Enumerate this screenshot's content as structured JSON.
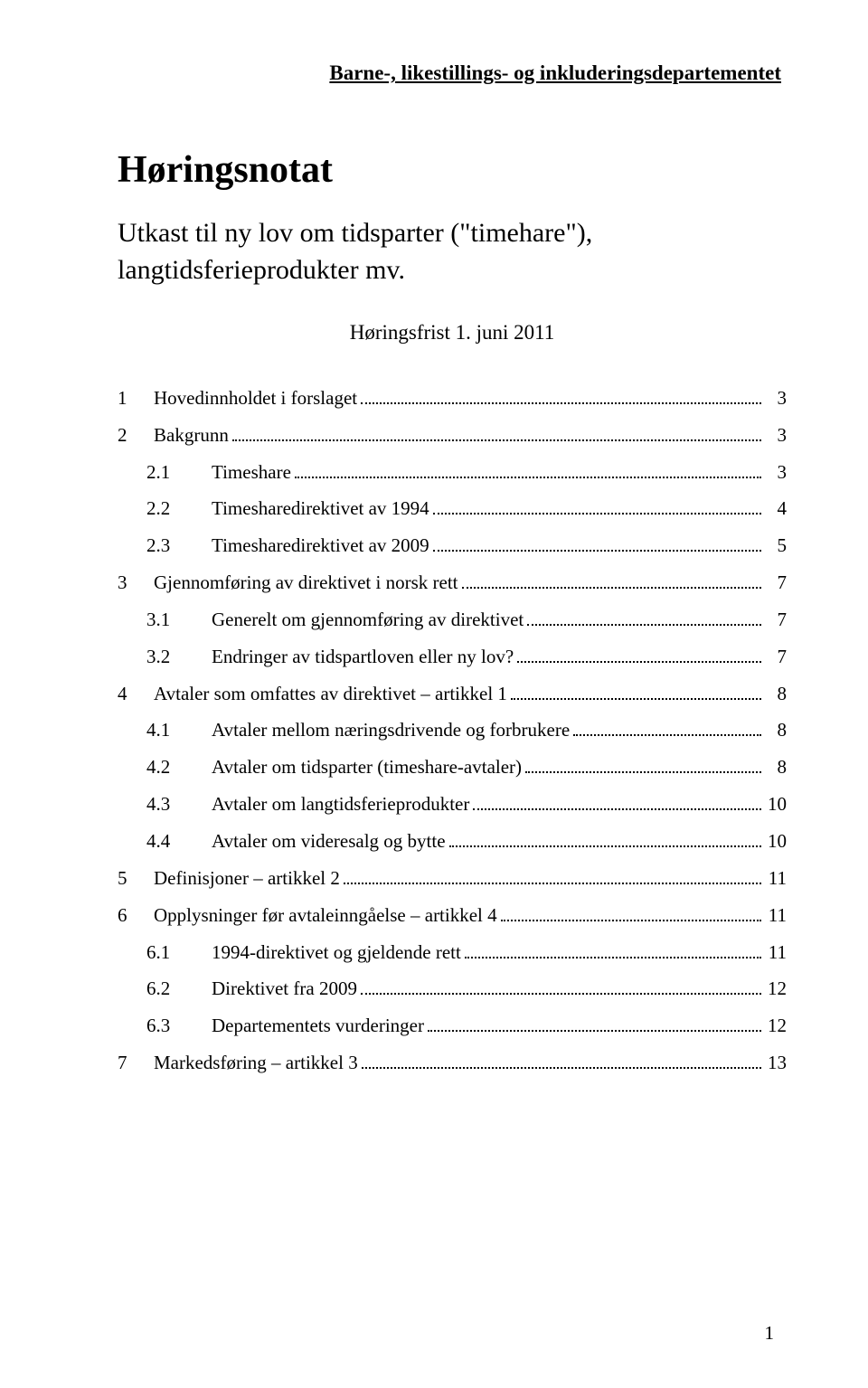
{
  "department": "Barne-, likestillings- og inkluderingsdepartementet",
  "title": "Høringsnotat",
  "subtitle": "Utkast til ny lov om tidsparter (\"timehare\"), langtidsferieprodukter mv.",
  "deadline": "Høringsfrist 1. juni 2011",
  "page_number": "1",
  "toc": [
    {
      "level": 0,
      "num": "1",
      "label": "Hovedinnholdet i forslaget",
      "page": "3"
    },
    {
      "level": 0,
      "num": "2",
      "label": "Bakgrunn",
      "page": "3"
    },
    {
      "level": 1,
      "num": "2.1",
      "label": "Timeshare",
      "page": "3"
    },
    {
      "level": 1,
      "num": "2.2",
      "label": "Timesharedirektivet av 1994",
      "page": "4"
    },
    {
      "level": 1,
      "num": "2.3",
      "label": "Timesharedirektivet av 2009",
      "page": "5"
    },
    {
      "level": 0,
      "num": "3",
      "label": "Gjennomføring av direktivet i norsk rett",
      "page": "7"
    },
    {
      "level": 1,
      "num": "3.1",
      "label": "Generelt om gjennomføring av direktivet",
      "page": "7"
    },
    {
      "level": 1,
      "num": "3.2",
      "label": "Endringer av tidspartloven eller ny lov?",
      "page": "7"
    },
    {
      "level": 0,
      "num": "4",
      "label": "Avtaler som omfattes av direktivet – artikkel 1",
      "page": "8"
    },
    {
      "level": 1,
      "num": "4.1",
      "label": "Avtaler mellom næringsdrivende og forbrukere",
      "page": "8"
    },
    {
      "level": 1,
      "num": "4.2",
      "label": "Avtaler om tidsparter (timeshare-avtaler)",
      "page": "8"
    },
    {
      "level": 1,
      "num": "4.3",
      "label": "Avtaler om langtidsferieprodukter",
      "page": "10"
    },
    {
      "level": 1,
      "num": "4.4",
      "label": "Avtaler om videresalg og bytte",
      "page": "10"
    },
    {
      "level": 0,
      "num": "5",
      "label": "Definisjoner – artikkel 2",
      "page": "11"
    },
    {
      "level": 0,
      "num": "6",
      "label": "Opplysninger før avtaleinngåelse – artikkel 4",
      "page": "11"
    },
    {
      "level": 1,
      "num": "6.1",
      "label": "1994-direktivet og gjeldende rett",
      "page": "11"
    },
    {
      "level": 1,
      "num": "6.2",
      "label": "Direktivet fra 2009",
      "page": "12"
    },
    {
      "level": 1,
      "num": "6.3",
      "label": "Departementets vurderinger",
      "page": "12"
    },
    {
      "level": 0,
      "num": "7",
      "label": "Markedsføring – artikkel 3",
      "page": "13"
    }
  ]
}
